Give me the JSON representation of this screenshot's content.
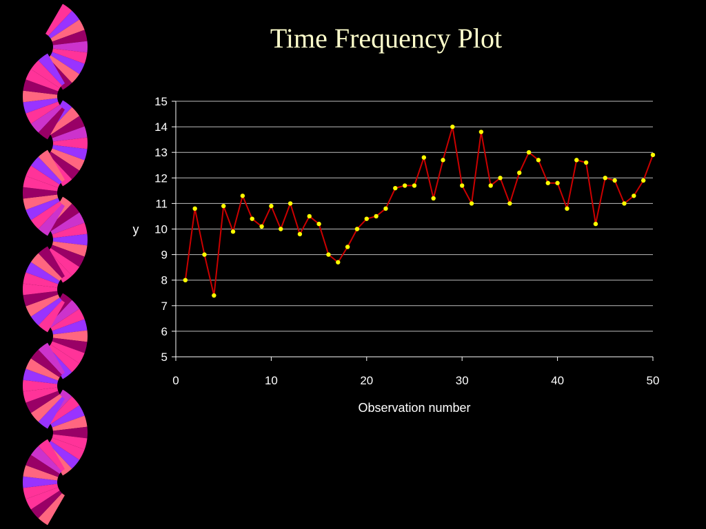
{
  "slide": {
    "title": "Time Frequency Plot",
    "background_color": "#000000",
    "title_color": "#FFFFCC",
    "decoration": {
      "icon": "fan-wave-border",
      "colors": [
        "#FF3399",
        "#9933FF",
        "#FF6680",
        "#990066",
        "#CC33CC"
      ]
    }
  },
  "chart_data": {
    "type": "line",
    "title": "Time Frequency Plot",
    "xlabel": "Observation number",
    "ylabel": "y",
    "xlim": [
      0,
      50
    ],
    "ylim": [
      5,
      15
    ],
    "x_ticks": [
      0,
      10,
      20,
      30,
      40,
      50
    ],
    "y_ticks": [
      5,
      6,
      7,
      8,
      9,
      10,
      11,
      12,
      13,
      14,
      15
    ],
    "grid": "horizontal",
    "line_color": "#CC0000",
    "marker_color": "#FFFF00",
    "series": [
      {
        "x": [
          1,
          2,
          3,
          4,
          5,
          6,
          7,
          8,
          9,
          10,
          11,
          12,
          13,
          14,
          15,
          16,
          17,
          18,
          19,
          20,
          21,
          22,
          23,
          24,
          25,
          26,
          27,
          28,
          29,
          30,
          31,
          32,
          33,
          34,
          35,
          36,
          37,
          38,
          39,
          40,
          41,
          42,
          43,
          44,
          45,
          46,
          47,
          48,
          49,
          50
        ],
        "values": [
          8.0,
          10.8,
          9.0,
          7.4,
          10.9,
          9.9,
          11.3,
          10.4,
          10.1,
          10.9,
          10.0,
          11.0,
          9.8,
          10.5,
          10.2,
          9.0,
          8.7,
          9.3,
          10.0,
          10.4,
          10.5,
          10.8,
          11.6,
          11.7,
          11.7,
          12.8,
          11.2,
          12.7,
          14.0,
          11.7,
          11.0,
          13.8,
          11.7,
          12.0,
          11.0,
          12.2,
          13.0,
          12.7,
          11.8,
          11.8,
          10.8,
          12.7,
          12.6,
          10.2,
          12.0,
          11.9,
          11.0,
          11.3,
          11.9,
          12.9
        ]
      }
    ]
  }
}
